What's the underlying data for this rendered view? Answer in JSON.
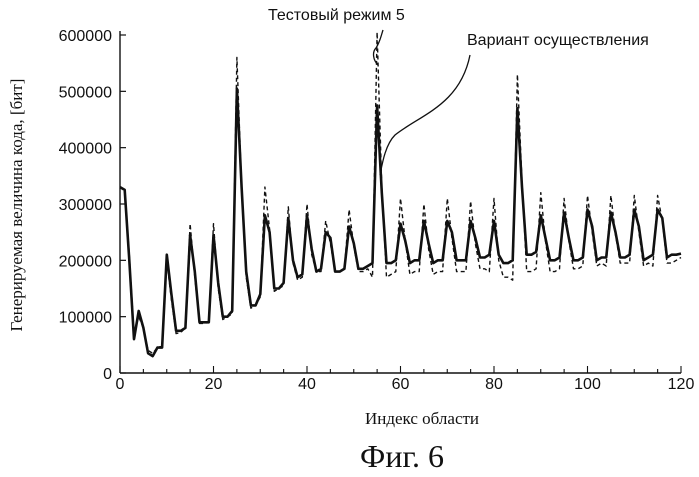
{
  "chart_data": {
    "type": "line",
    "title": "",
    "xlabel": "Индекс области",
    "ylabel": "Генерируемая величина кода, [бит]",
    "caption": "Фиг. 6",
    "xlim": [
      0,
      120
    ],
    "ylim": [
      0,
      600000
    ],
    "xticks": [
      0,
      20,
      40,
      60,
      80,
      100,
      120
    ],
    "yticks": [
      0,
      100000,
      200000,
      300000,
      400000,
      500000,
      600000
    ],
    "annotations": [
      {
        "text": "Тестовый режим 5",
        "points_to": "test-mode-5-series"
      },
      {
        "text": "Вариант осуществления",
        "points_to": "embodiment-series"
      }
    ],
    "series": [
      {
        "name": "Вариант осуществления",
        "style": "solid",
        "x": [
          0,
          1,
          2,
          3,
          4,
          5,
          6,
          7,
          8,
          9,
          10,
          11,
          12,
          13,
          14,
          15,
          16,
          17,
          18,
          19,
          20,
          21,
          22,
          23,
          24,
          25,
          26,
          27,
          28,
          29,
          30,
          31,
          32,
          33,
          34,
          35,
          36,
          37,
          38,
          39,
          40,
          41,
          42,
          43,
          44,
          45,
          46,
          47,
          48,
          49,
          50,
          51,
          52,
          53,
          54,
          55,
          56,
          57,
          58,
          59,
          60,
          61,
          62,
          63,
          64,
          65,
          66,
          67,
          68,
          69,
          70,
          71,
          72,
          73,
          74,
          75,
          76,
          77,
          78,
          79,
          80,
          81,
          82,
          83,
          84,
          85,
          86,
          87,
          88,
          89,
          90,
          91,
          92,
          93,
          94,
          95,
          96,
          97,
          98,
          99,
          100,
          101,
          102,
          103,
          104,
          105,
          106,
          107,
          108,
          109,
          110,
          111,
          112,
          113,
          114,
          115,
          116,
          117,
          118,
          119,
          120
        ],
        "values": [
          330000,
          325000,
          200000,
          60000,
          110000,
          80000,
          35000,
          30000,
          45000,
          45000,
          210000,
          140000,
          75000,
          75000,
          80000,
          245000,
          180000,
          90000,
          90000,
          90000,
          245000,
          160000,
          100000,
          100000,
          110000,
          505000,
          330000,
          180000,
          120000,
          120000,
          140000,
          280000,
          250000,
          150000,
          150000,
          160000,
          275000,
          200000,
          170000,
          175000,
          280000,
          220000,
          180000,
          185000,
          250000,
          240000,
          180000,
          180000,
          185000,
          260000,
          230000,
          185000,
          185000,
          190000,
          195000,
          475000,
          320000,
          195000,
          195000,
          200000,
          265000,
          235000,
          195000,
          200000,
          200000,
          270000,
          230000,
          195000,
          200000,
          200000,
          270000,
          250000,
          200000,
          200000,
          200000,
          270000,
          240000,
          205000,
          205000,
          210000,
          270000,
          210000,
          195000,
          195000,
          200000,
          470000,
          330000,
          210000,
          210000,
          215000,
          280000,
          240000,
          200000,
          200000,
          205000,
          285000,
          240000,
          200000,
          200000,
          205000,
          290000,
          260000,
          200000,
          205000,
          205000,
          285000,
          250000,
          205000,
          205000,
          210000,
          290000,
          260000,
          200000,
          205000,
          210000,
          290000,
          275000,
          205000,
          210000,
          210000,
          212000
        ]
      },
      {
        "name": "Тестовый режим 5",
        "style": "dashed",
        "x": [
          0,
          1,
          2,
          3,
          4,
          5,
          6,
          7,
          8,
          9,
          10,
          11,
          12,
          13,
          14,
          15,
          16,
          17,
          18,
          19,
          20,
          21,
          22,
          23,
          24,
          25,
          26,
          27,
          28,
          29,
          30,
          31,
          32,
          33,
          34,
          35,
          36,
          37,
          38,
          39,
          40,
          41,
          42,
          43,
          44,
          45,
          46,
          47,
          48,
          49,
          50,
          51,
          52,
          53,
          54,
          55,
          56,
          57,
          58,
          59,
          60,
          61,
          62,
          63,
          64,
          65,
          66,
          67,
          68,
          69,
          70,
          71,
          72,
          73,
          74,
          75,
          76,
          77,
          78,
          79,
          80,
          81,
          82,
          83,
          84,
          85,
          86,
          87,
          88,
          89,
          90,
          91,
          92,
          93,
          94,
          95,
          96,
          97,
          98,
          99,
          100,
          101,
          102,
          103,
          104,
          105,
          106,
          107,
          108,
          109,
          110,
          111,
          112,
          113,
          114,
          115,
          116,
          117,
          118,
          119,
          120
        ],
        "values": [
          330000,
          325000,
          210000,
          70000,
          100000,
          80000,
          40000,
          35000,
          45000,
          48000,
          200000,
          130000,
          70000,
          72000,
          80000,
          265000,
          170000,
          88000,
          88000,
          90000,
          265000,
          150000,
          95000,
          100000,
          105000,
          560000,
          330000,
          170000,
          115000,
          120000,
          135000,
          330000,
          255000,
          145000,
          150000,
          155000,
          295000,
          195000,
          165000,
          170000,
          300000,
          210000,
          180000,
          180000,
          270000,
          230000,
          180000,
          180000,
          185000,
          290000,
          225000,
          180000,
          180000,
          185000,
          170000,
          605000,
          330000,
          170000,
          175000,
          180000,
          310000,
          235000,
          175000,
          180000,
          180000,
          300000,
          220000,
          175000,
          180000,
          180000,
          310000,
          240000,
          180000,
          180000,
          180000,
          305000,
          230000,
          185000,
          185000,
          180000,
          310000,
          200000,
          170000,
          170000,
          165000,
          530000,
          340000,
          180000,
          180000,
          185000,
          320000,
          235000,
          180000,
          180000,
          185000,
          310000,
          235000,
          185000,
          185000,
          190000,
          315000,
          250000,
          190000,
          195000,
          190000,
          315000,
          245000,
          195000,
          195000,
          195000,
          315000,
          250000,
          190000,
          195000,
          190000,
          315000,
          270000,
          195000,
          195000,
          200000,
          205000
        ]
      }
    ]
  }
}
